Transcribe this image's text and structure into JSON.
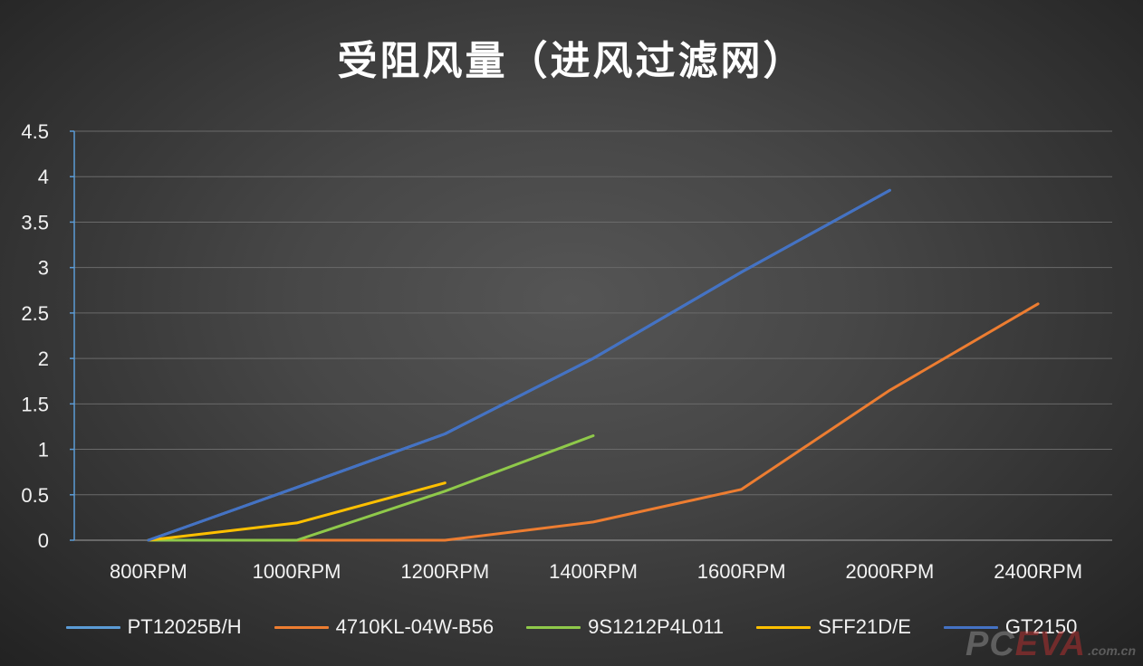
{
  "chart_data": {
    "type": "line",
    "title": "受阻风量（进风过滤网）",
    "xlabel": "",
    "ylabel": "",
    "ylim": [
      0,
      4.5
    ],
    "yticks": [
      "0",
      "0.5",
      "1",
      "1.5",
      "2",
      "2.5",
      "3",
      "3.5",
      "4",
      "4.5"
    ],
    "categories": [
      "800RPM",
      "1000RPM",
      "1200RPM",
      "1400RPM",
      "1600RPM",
      "2000RPM",
      "2400RPM"
    ],
    "grid": true,
    "legend_position": "bottom",
    "series": [
      {
        "name": "PT12025B/H",
        "color": "#5b9bd5",
        "values": [
          0,
          0.58,
          1.17,
          2.0,
          2.95,
          3.85,
          null
        ]
      },
      {
        "name": "4710KL-04W-B56",
        "color": "#ed7d31",
        "values": [
          0,
          0,
          0,
          0.2,
          0.56,
          1.65,
          2.6
        ]
      },
      {
        "name": "9S1212P4L011",
        "color": "#8fc94a",
        "values": [
          0,
          0,
          0.54,
          1.15,
          null,
          null,
          null
        ]
      },
      {
        "name": "SFF21D/E",
        "color": "#ffc000",
        "values": [
          0,
          0.19,
          0.63,
          null,
          null,
          null,
          null
        ]
      },
      {
        "name": "GT2150",
        "color": "#4472c4",
        "values": [
          0,
          0.58,
          1.17,
          2.0,
          2.95,
          3.85,
          null
        ]
      }
    ]
  },
  "watermark": {
    "part1": "PC",
    "part2": "EVA",
    "suffix": ".com.cn"
  }
}
